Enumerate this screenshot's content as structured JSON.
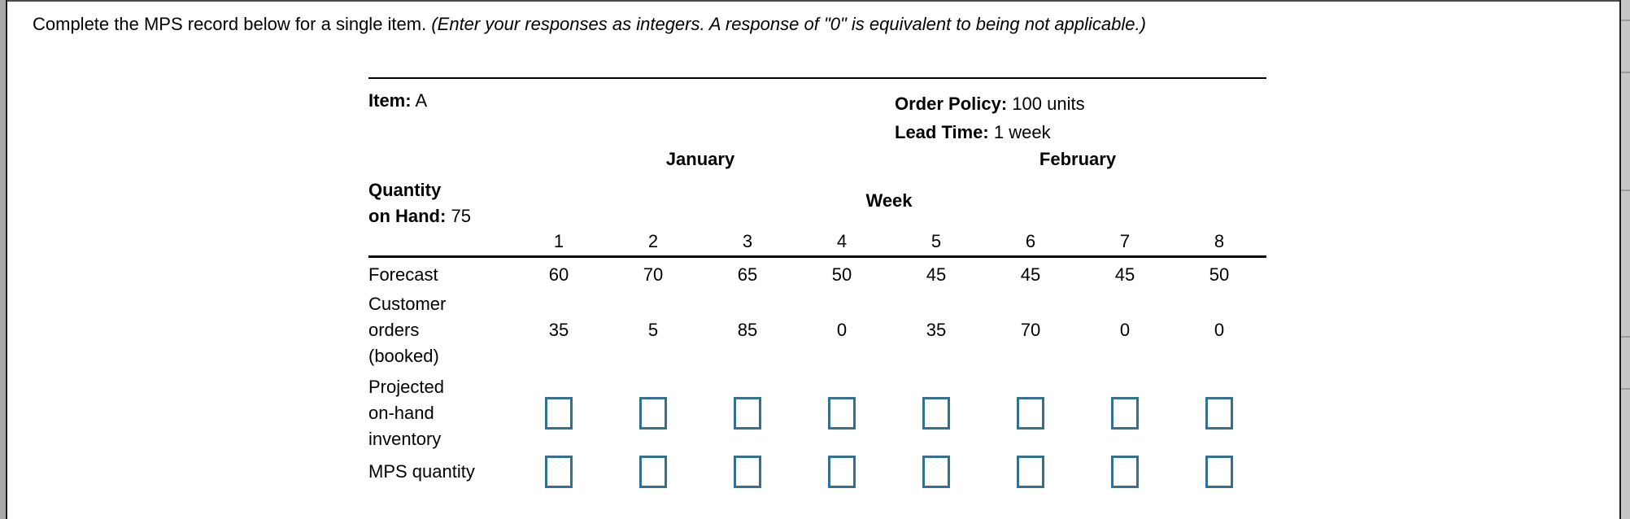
{
  "instruction": {
    "normal": "Complete the MPS record below for a single item. ",
    "italic": "(Enter your responses as integers. A response of \"0\" is equivalent to being not applicable.)"
  },
  "record": {
    "item_label": "Item:",
    "item_value": "A",
    "order_policy_label": "Order Policy:",
    "order_policy_value": "100 units",
    "lead_time_label": "Lead Time:",
    "lead_time_value": "1 week",
    "quantity_on_hand_line1": "Quantity",
    "quantity_on_hand_line2_label": "on Hand:",
    "quantity_on_hand_value": "75",
    "month_first": "January",
    "month_second": "February",
    "week_header": "Week",
    "week_numbers": [
      "1",
      "2",
      "3",
      "4",
      "5",
      "6",
      "7",
      "8"
    ],
    "rows": {
      "forecast": {
        "label": "Forecast",
        "values": [
          60,
          70,
          65,
          50,
          45,
          45,
          45,
          50
        ]
      },
      "customer_orders": {
        "label_lines": [
          "Customer",
          "orders",
          "(booked)"
        ],
        "values": [
          35,
          5,
          85,
          0,
          35,
          70,
          0,
          0
        ]
      },
      "projected_inventory": {
        "label_lines": [
          "Projected",
          "on-hand",
          "inventory"
        ],
        "input_values": [
          "",
          "",
          "",
          "",
          "",
          "",
          "",
          ""
        ]
      },
      "mps_quantity": {
        "label": "MPS quantity",
        "input_values": [
          "",
          "",
          "",
          "",
          "",
          "",
          "",
          ""
        ]
      }
    }
  },
  "colors": {
    "input_border": "#34718c",
    "rule": "#000000",
    "chrome_gray": "#c7c7c7"
  }
}
